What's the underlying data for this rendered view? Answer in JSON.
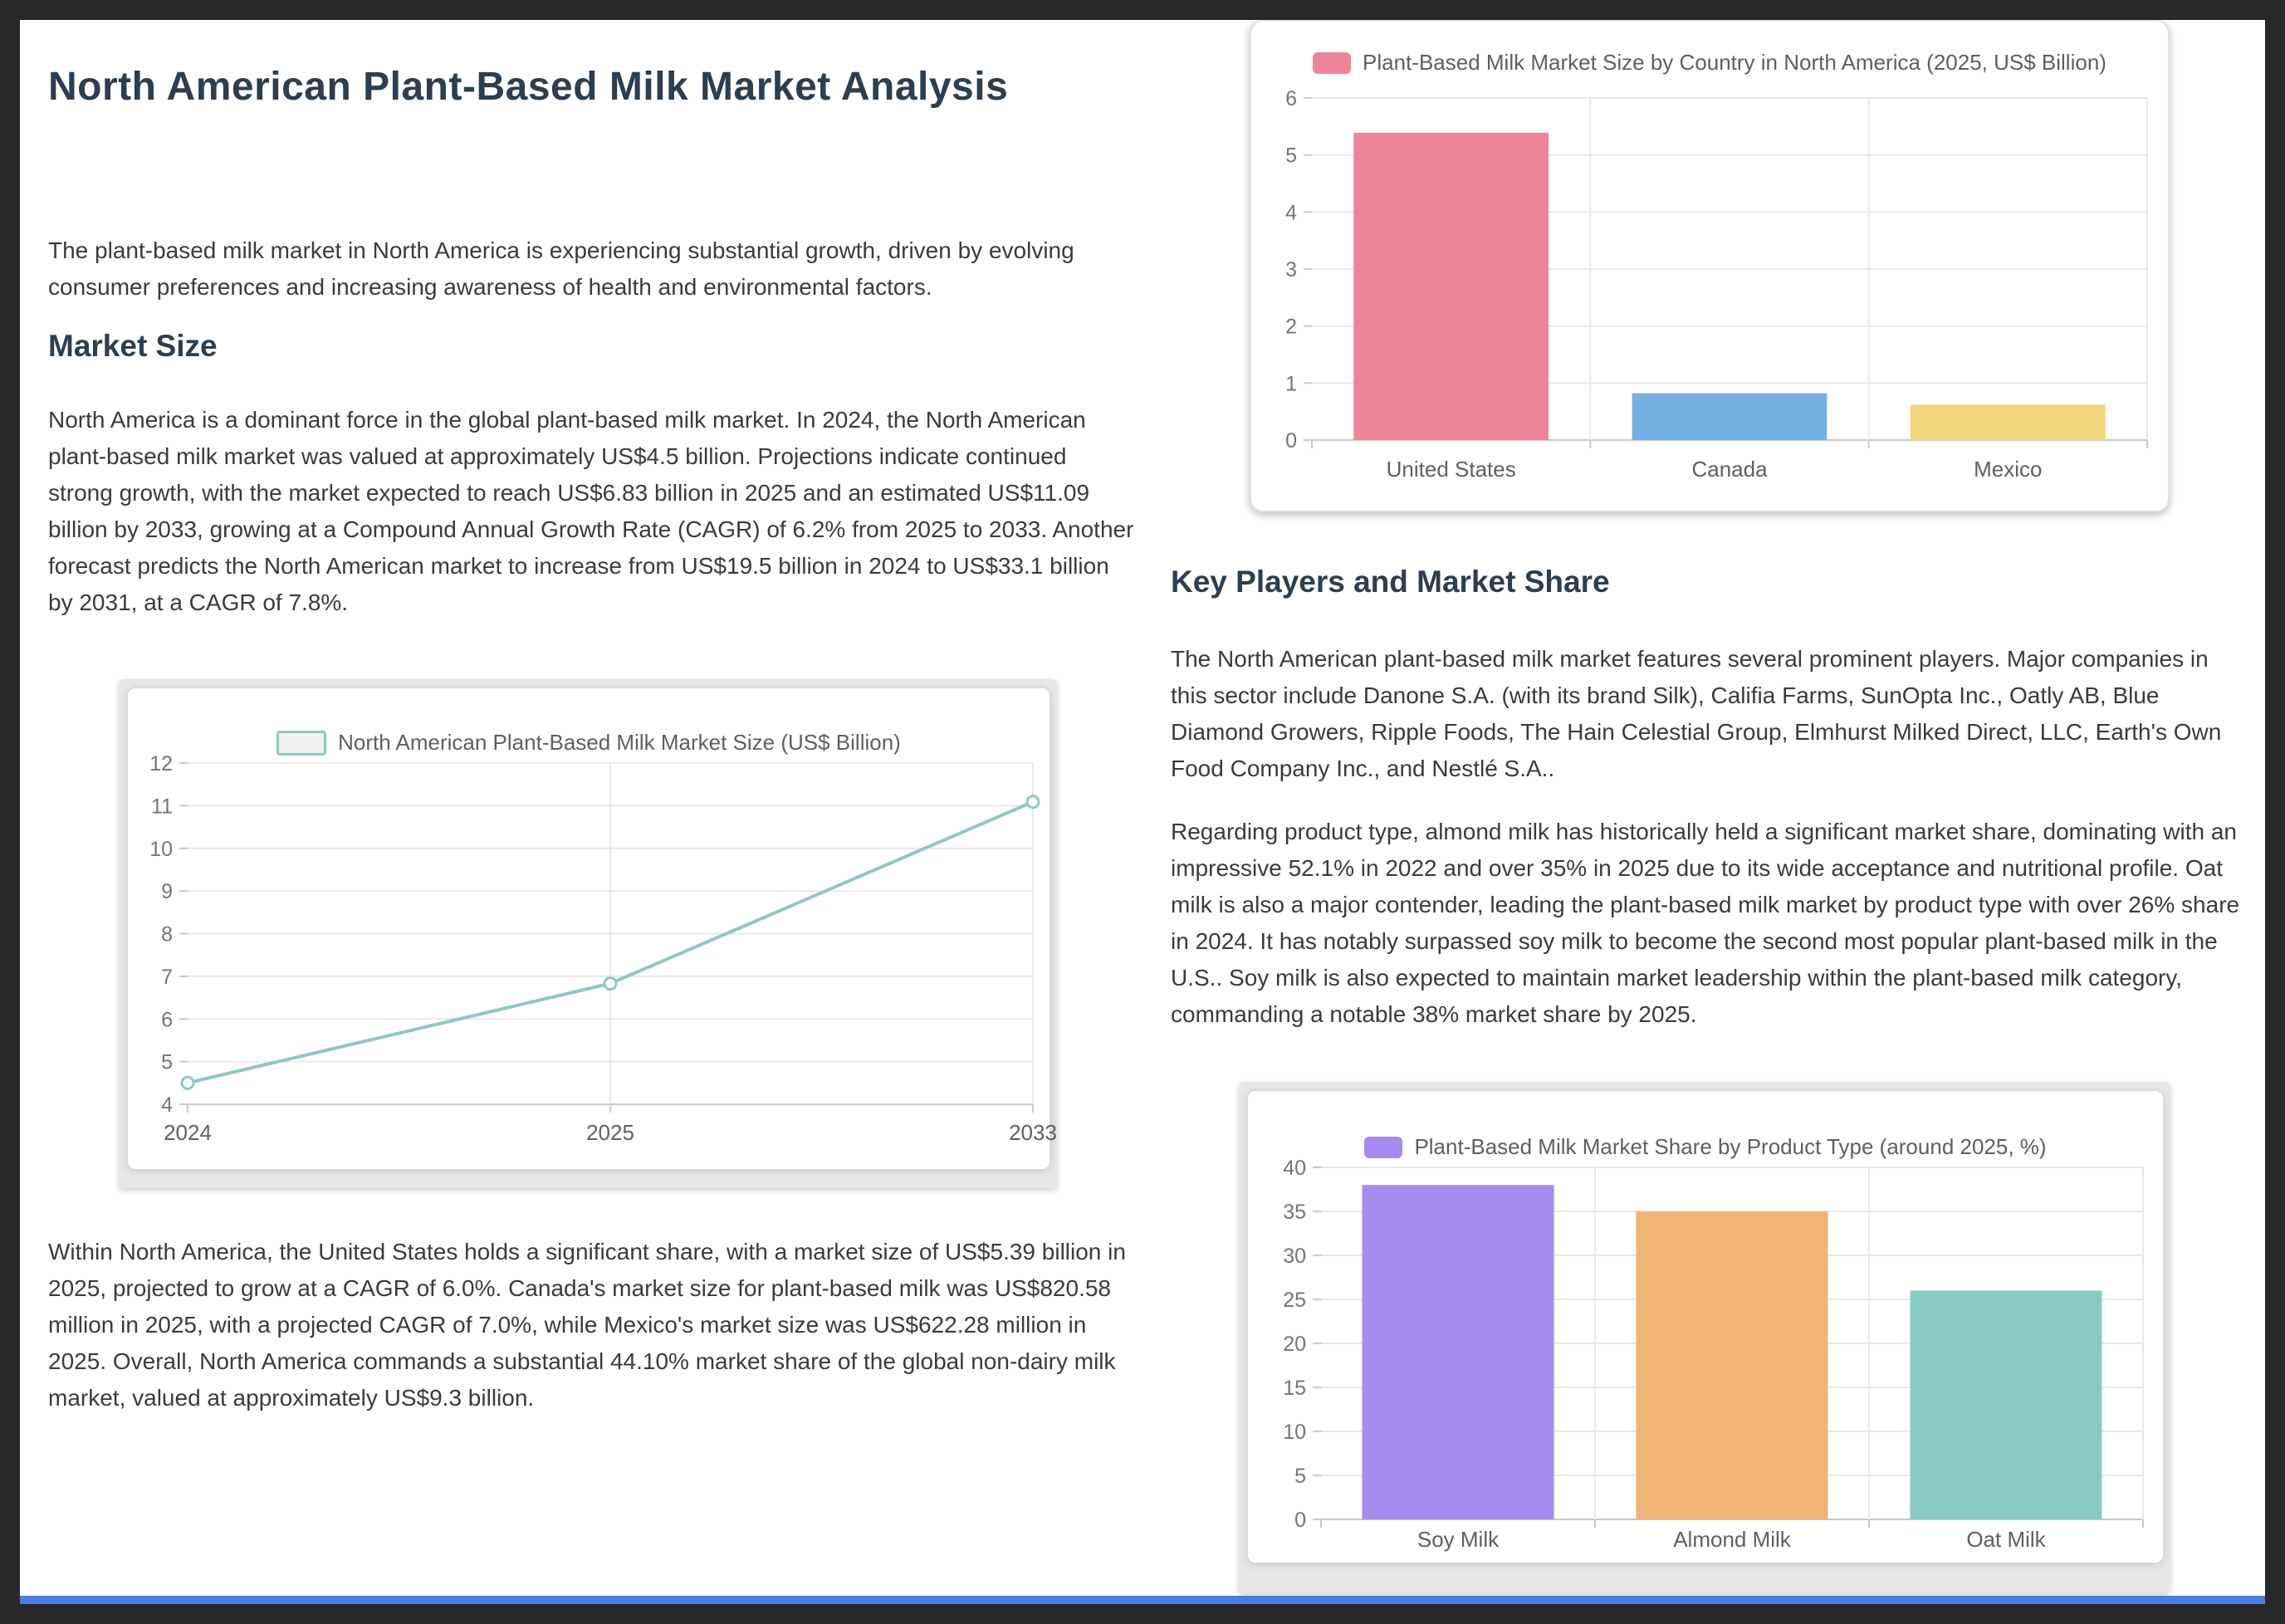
{
  "theme": {
    "canvas_bg": "#282828",
    "page_bg": "#ffffff",
    "heading_color": "#2c3e50",
    "body_text_color": "#3b3b3b",
    "axis_label_color": "#757575",
    "category_label_color": "#606060",
    "gridline_color": "#e9e9e9",
    "axis_line_color": "#c9c9c9",
    "bottom_accent_color": "#4a7de2"
  },
  "doc": {
    "title": "North American Plant-Based Milk Market Analysis",
    "intro": "The plant-based milk market in North America is experiencing substantial growth, driven by evolving consumer preferences and increasing awareness of health and environmental factors.",
    "market_size": {
      "heading": "Market Size",
      "p1": "North America is a dominant force in the global plant-based milk market. In 2024, the North American plant-based milk market was valued at approximately US$4.5 billion. Projections indicate continued strong growth, with the market expected to reach US$6.83 billion in 2025 and an estimated US$11.09 billion by 2033, growing at a Compound Annual Growth Rate (CAGR) of 6.2% from 2025 to 2033. Another forecast predicts the North American market to increase from US$19.5 billion in 2024 to US$33.1 billion by 2031, at a CAGR of 7.8%.",
      "p2": "Within North America, the United States holds a significant share, with a market size of US$5.39 billion in 2025, projected to grow at a CAGR of 6.0%. Canada's market size for plant-based milk was US$820.58 million in 2025, with a projected CAGR of 7.0%, while Mexico's market size was US$622.28 million in 2025. Overall, North America commands a substantial 44.10% market share of the global non-dairy milk market, valued at approximately US$9.3 billion."
    },
    "key_players": {
      "heading": "Key Players and Market Share",
      "p1": "The North American plant-based milk market features several prominent players. Major companies in this sector include Danone S.A. (with its brand Silk), Califia Farms, SunOpta Inc., Oatly AB, Blue Diamond Growers, Ripple Foods, The Hain Celestial Group, Elmhurst Milked Direct, LLC, Earth's Own Food Company Inc., and Nestlé S.A..",
      "p2": "Regarding product type, almond milk has historically held a significant market share, dominating with an impressive 52.1% in 2022 and over 35% in 2025 due to its wide acceptance and nutritional profile. Oat milk is also a major contender, leading the plant-based milk market by product type with over 26% share in 2024. It has notably surpassed soy milk to become the second most popular plant-based milk in the U.S.. Soy milk is also expected to maintain market leadership within the plant-based milk category, commanding a notable 38% market share by 2025."
    }
  },
  "chart_data": [
    {
      "id": "north-america-market-size-trend",
      "type": "line",
      "legend": "North American Plant-Based Milk Market Size (US$ Billion)",
      "categories": [
        "2024",
        "2025",
        "2033"
      ],
      "values": [
        4.5,
        6.83,
        11.09
      ],
      "ylim": [
        4,
        12
      ],
      "ystep": 1,
      "grid": true,
      "legend_position": "top-center",
      "line_color": "#8fc7c3",
      "marker": "hollow-circle"
    },
    {
      "id": "market-size-by-country-2025",
      "type": "bar",
      "legend": "Plant-Based Milk Market Size by Country in North America (2025, US$ Billion)",
      "categories": [
        "United States",
        "Canada",
        "Mexico"
      ],
      "values": [
        5.39,
        0.82,
        0.62
      ],
      "ylim": [
        0,
        6
      ],
      "ystep": 1,
      "grid": true,
      "legend_position": "top-center",
      "bar_colors": [
        "#ee8498",
        "#74b0e2",
        "#f2d77f"
      ],
      "legend_swatch_color": "#ee8498"
    },
    {
      "id": "market-share-by-product-type-2025",
      "type": "bar",
      "legend": "Plant-Based Milk Market Share by Product Type (around 2025, %)",
      "categories": [
        "Soy Milk",
        "Almond Milk",
        "Oat Milk"
      ],
      "values": [
        38,
        35,
        26
      ],
      "ylim": [
        0,
        40
      ],
      "ystep": 5,
      "grid": true,
      "legend_position": "top-center",
      "bar_colors": [
        "#a78bef",
        "#f2b377",
        "#89cac5"
      ],
      "legend_swatch_color": "#a78bef"
    }
  ]
}
